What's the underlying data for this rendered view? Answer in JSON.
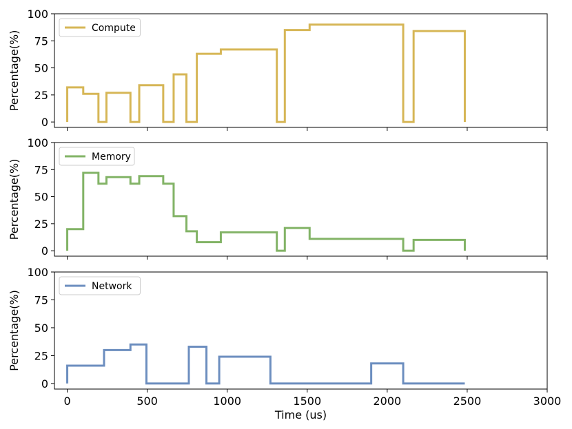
{
  "chart_data": [
    {
      "type": "line",
      "step": true,
      "xlabel": "",
      "ylabel": "Percentage(%)",
      "xlim": [
        -80,
        3000
      ],
      "ylim": [
        -5,
        100
      ],
      "yticks": [
        0,
        25,
        50,
        75,
        100
      ],
      "xticks": [
        0,
        500,
        1000,
        1500,
        2000,
        2500,
        3000
      ],
      "show_xtick_labels": false,
      "legend": "top-left",
      "series": [
        {
          "name": "Compute",
          "color": "#d6b656",
          "x": [
            0,
            0,
            100,
            100,
            195,
            195,
            245,
            245,
            395,
            395,
            450,
            450,
            600,
            600,
            665,
            665,
            745,
            745,
            810,
            810,
            960,
            960,
            1310,
            1310,
            1360,
            1360,
            1515,
            1515,
            2100,
            2100,
            2165,
            2165,
            2485,
            2485
          ],
          "y": [
            0,
            32,
            32,
            26,
            26,
            0,
            0,
            27,
            27,
            0,
            0,
            34,
            34,
            0,
            0,
            44,
            44,
            0,
            0,
            63,
            63,
            67,
            67,
            0,
            0,
            85,
            85,
            90,
            90,
            0,
            0,
            84,
            84,
            0
          ]
        }
      ]
    },
    {
      "type": "line",
      "step": true,
      "xlabel": "",
      "ylabel": "Percentage(%)",
      "xlim": [
        -80,
        3000
      ],
      "ylim": [
        -5,
        100
      ],
      "yticks": [
        0,
        25,
        50,
        75,
        100
      ],
      "xticks": [
        0,
        500,
        1000,
        1500,
        2000,
        2500,
        3000
      ],
      "show_xtick_labels": false,
      "legend": "top-left",
      "series": [
        {
          "name": "Memory",
          "color": "#82b366",
          "x": [
            0,
            0,
            100,
            100,
            195,
            195,
            245,
            245,
            395,
            395,
            450,
            450,
            600,
            600,
            665,
            665,
            745,
            745,
            810,
            810,
            960,
            960,
            1310,
            1310,
            1360,
            1360,
            1515,
            1515,
            2100,
            2100,
            2165,
            2165,
            2485,
            2485
          ],
          "y": [
            0,
            20,
            20,
            72,
            72,
            62,
            62,
            68,
            68,
            62,
            62,
            69,
            69,
            62,
            62,
            32,
            32,
            18,
            18,
            8,
            8,
            17,
            17,
            0,
            0,
            21,
            21,
            11,
            11,
            0,
            0,
            10,
            10,
            0
          ]
        }
      ]
    },
    {
      "type": "line",
      "step": true,
      "xlabel": "Time (us)",
      "ylabel": "Percentage(%)",
      "xlim": [
        -80,
        3000
      ],
      "ylim": [
        -5,
        100
      ],
      "yticks": [
        0,
        25,
        50,
        75,
        100
      ],
      "xticks": [
        0,
        500,
        1000,
        1500,
        2000,
        2500,
        3000
      ],
      "show_xtick_labels": true,
      "legend": "top-left",
      "series": [
        {
          "name": "Network",
          "color": "#6c8ebf",
          "x": [
            0,
            0,
            230,
            230,
            395,
            395,
            495,
            495,
            760,
            760,
            870,
            870,
            950,
            950,
            1270,
            1270,
            1900,
            1900,
            2100,
            2100,
            2485
          ],
          "y": [
            0,
            16,
            16,
            30,
            30,
            35,
            35,
            0,
            0,
            33,
            33,
            0,
            0,
            24,
            24,
            0,
            0,
            18,
            18,
            0,
            0
          ]
        }
      ]
    }
  ]
}
